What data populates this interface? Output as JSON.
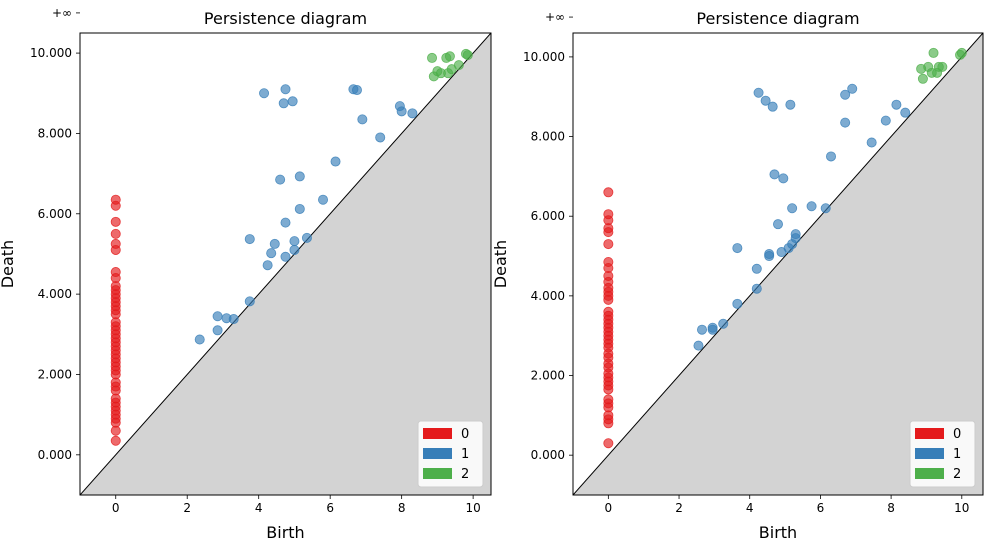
{
  "colors": {
    "h0": "#e41a1c",
    "h1": "#377eb8",
    "h2": "#4daf4a",
    "diag_fill": "#d3d3d3",
    "inf_line": "#808080"
  },
  "chart_data": [
    {
      "type": "scatter",
      "title": "Persistence diagram",
      "xlabel": "Birth",
      "ylabel": "Death",
      "xlim": [
        -1.0,
        10.5
      ],
      "ylim": [
        -1.0,
        10.5
      ],
      "xticks": [
        0,
        2,
        4,
        6,
        8,
        10
      ],
      "yticks": [
        0,
        2,
        4,
        6,
        8,
        10
      ],
      "ytick_labels": [
        "0.000",
        "2.000",
        "4.000",
        "6.000",
        "8.000",
        "10.000"
      ],
      "inf_label": "+∞",
      "inf_value": 11.0,
      "legend_placement": "lower-right",
      "series": [
        {
          "name": "0",
          "color": "#e41a1c",
          "points": [
            [
              0,
              11.0
            ],
            [
              0,
              6.35
            ],
            [
              0,
              6.2
            ],
            [
              0,
              5.8
            ],
            [
              0,
              5.5
            ],
            [
              0,
              5.25
            ],
            [
              0,
              5.1
            ],
            [
              0,
              4.55
            ],
            [
              0,
              4.4
            ],
            [
              0,
              4.2
            ],
            [
              0,
              4.1
            ],
            [
              0,
              4.0
            ],
            [
              0,
              3.9
            ],
            [
              0,
              3.8
            ],
            [
              0,
              3.7
            ],
            [
              0,
              3.6
            ],
            [
              0,
              3.5
            ],
            [
              0,
              3.3
            ],
            [
              0,
              3.2
            ],
            [
              0,
              3.1
            ],
            [
              0,
              3.0
            ],
            [
              0,
              2.9
            ],
            [
              0,
              2.8
            ],
            [
              0,
              2.7
            ],
            [
              0,
              2.6
            ],
            [
              0,
              2.5
            ],
            [
              0,
              2.4
            ],
            [
              0,
              2.3
            ],
            [
              0,
              2.2
            ],
            [
              0,
              2.1
            ],
            [
              0,
              2.0
            ],
            [
              0,
              1.8
            ],
            [
              0,
              1.7
            ],
            [
              0,
              1.6
            ],
            [
              0,
              1.4
            ],
            [
              0,
              1.3
            ],
            [
              0,
              1.2
            ],
            [
              0,
              1.1
            ],
            [
              0,
              1.0
            ],
            [
              0,
              0.9
            ],
            [
              0,
              0.8
            ],
            [
              0,
              0.6
            ],
            [
              0,
              0.35
            ]
          ]
        },
        {
          "name": "1",
          "color": "#377eb8",
          "points": [
            [
              2.35,
              2.87
            ],
            [
              2.85,
              3.1
            ],
            [
              2.85,
              3.45
            ],
            [
              3.1,
              3.4
            ],
            [
              3.3,
              3.38
            ],
            [
              3.75,
              3.82
            ],
            [
              3.75,
              5.37
            ],
            [
              4.15,
              9.0
            ],
            [
              4.25,
              4.72
            ],
            [
              4.35,
              5.02
            ],
            [
              4.45,
              5.25
            ],
            [
              4.6,
              6.85
            ],
            [
              4.7,
              8.75
            ],
            [
              4.75,
              9.1
            ],
            [
              4.75,
              5.78
            ],
            [
              4.75,
              4.93
            ],
            [
              4.95,
              8.8
            ],
            [
              5.0,
              5.1
            ],
            [
              5.0,
              5.32
            ],
            [
              5.15,
              6.93
            ],
            [
              5.15,
              6.12
            ],
            [
              5.35,
              5.4
            ],
            [
              5.8,
              6.35
            ],
            [
              6.15,
              7.3
            ],
            [
              6.65,
              9.1
            ],
            [
              6.75,
              9.08
            ],
            [
              6.9,
              8.35
            ],
            [
              7.4,
              7.9
            ],
            [
              7.95,
              8.68
            ],
            [
              8.0,
              8.55
            ],
            [
              8.3,
              8.5
            ]
          ]
        },
        {
          "name": "2",
          "color": "#4daf4a",
          "points": [
            [
              8.85,
              9.88
            ],
            [
              8.9,
              9.42
            ],
            [
              9.0,
              9.55
            ],
            [
              9.1,
              9.5
            ],
            [
              9.25,
              9.88
            ],
            [
              9.3,
              9.5
            ],
            [
              9.35,
              9.92
            ],
            [
              9.4,
              9.6
            ],
            [
              9.6,
              9.7
            ],
            [
              9.8,
              9.98
            ],
            [
              9.85,
              9.95
            ]
          ]
        }
      ]
    },
    {
      "type": "scatter",
      "title": "Persistence diagram",
      "xlabel": "Birth",
      "ylabel": "Death",
      "xlim": [
        -1.0,
        10.6
      ],
      "ylim": [
        -1.0,
        10.6
      ],
      "xticks": [
        0,
        2,
        4,
        6,
        8,
        10
      ],
      "yticks": [
        0,
        2,
        4,
        6,
        8,
        10
      ],
      "ytick_labels": [
        "0.000",
        "2.000",
        "4.000",
        "6.000",
        "8.000",
        "10.000"
      ],
      "inf_label": "+∞",
      "inf_value": 11.0,
      "legend_placement": "lower-right",
      "series": [
        {
          "name": "0",
          "color": "#e41a1c",
          "points": [
            [
              0,
              11.0
            ],
            [
              0,
              6.6
            ],
            [
              0,
              6.05
            ],
            [
              0,
              5.9
            ],
            [
              0,
              5.7
            ],
            [
              0,
              5.6
            ],
            [
              0,
              5.3
            ],
            [
              0,
              4.85
            ],
            [
              0,
              4.7
            ],
            [
              0,
              4.5
            ],
            [
              0,
              4.35
            ],
            [
              0,
              4.2
            ],
            [
              0,
              4.1
            ],
            [
              0,
              4.0
            ],
            [
              0,
              3.9
            ],
            [
              0,
              3.6
            ],
            [
              0,
              3.5
            ],
            [
              0,
              3.4
            ],
            [
              0,
              3.3
            ],
            [
              0,
              3.2
            ],
            [
              0,
              3.1
            ],
            [
              0,
              3.0
            ],
            [
              0,
              2.9
            ],
            [
              0,
              2.8
            ],
            [
              0,
              2.7
            ],
            [
              0,
              2.55
            ],
            [
              0,
              2.45
            ],
            [
              0,
              2.3
            ],
            [
              0,
              2.2
            ],
            [
              0,
              2.05
            ],
            [
              0,
              1.95
            ],
            [
              0,
              1.85
            ],
            [
              0,
              1.75
            ],
            [
              0,
              1.65
            ],
            [
              0,
              1.4
            ],
            [
              0,
              1.3
            ],
            [
              0,
              1.2
            ],
            [
              0,
              1.0
            ],
            [
              0,
              0.9
            ],
            [
              0,
              0.8
            ],
            [
              0,
              0.3
            ]
          ]
        },
        {
          "name": "1",
          "color": "#377eb8",
          "points": [
            [
              2.55,
              2.75
            ],
            [
              2.65,
              3.15
            ],
            [
              2.95,
              3.15
            ],
            [
              2.95,
              3.2
            ],
            [
              3.25,
              3.3
            ],
            [
              3.65,
              5.2
            ],
            [
              3.65,
              3.8
            ],
            [
              4.2,
              4.18
            ],
            [
              4.2,
              4.68
            ],
            [
              4.25,
              9.1
            ],
            [
              4.45,
              8.9
            ],
            [
              4.55,
              5.0
            ],
            [
              4.55,
              5.05
            ],
            [
              4.65,
              8.75
            ],
            [
              4.7,
              7.05
            ],
            [
              4.8,
              5.8
            ],
            [
              4.9,
              5.1
            ],
            [
              4.95,
              6.95
            ],
            [
              5.15,
              8.8
            ],
            [
              5.1,
              5.2
            ],
            [
              5.2,
              6.2
            ],
            [
              5.2,
              5.3
            ],
            [
              5.3,
              5.55
            ],
            [
              5.3,
              5.45
            ],
            [
              5.75,
              6.25
            ],
            [
              6.15,
              6.2
            ],
            [
              6.3,
              7.5
            ],
            [
              6.7,
              9.05
            ],
            [
              6.7,
              8.35
            ],
            [
              6.9,
              9.2
            ],
            [
              7.45,
              7.85
            ],
            [
              7.85,
              8.4
            ],
            [
              8.15,
              8.8
            ],
            [
              8.4,
              8.6
            ]
          ]
        },
        {
          "name": "2",
          "color": "#4daf4a",
          "points": [
            [
              8.85,
              9.7
            ],
            [
              8.9,
              9.45
            ],
            [
              9.05,
              9.75
            ],
            [
              9.15,
              9.6
            ],
            [
              9.2,
              10.1
            ],
            [
              9.3,
              9.6
            ],
            [
              9.35,
              9.75
            ],
            [
              9.45,
              9.75
            ],
            [
              9.95,
              10.05
            ],
            [
              10.0,
              10.1
            ]
          ]
        }
      ]
    }
  ]
}
